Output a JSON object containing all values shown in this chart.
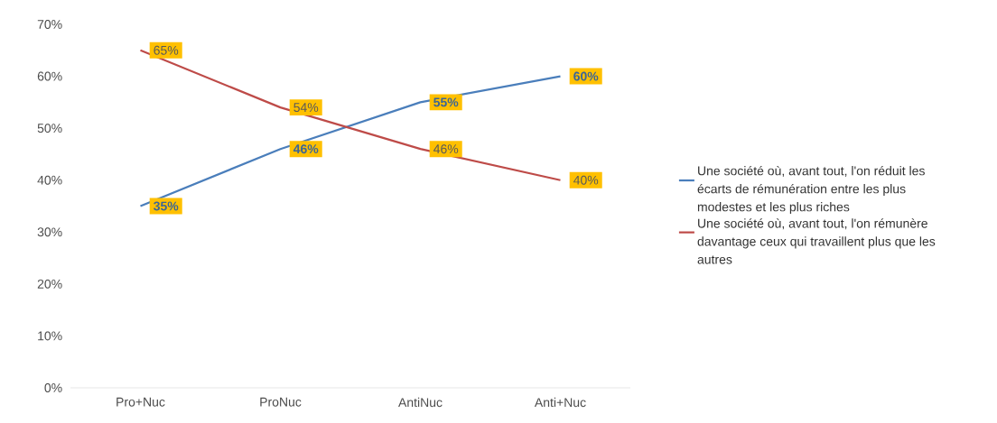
{
  "chart_data": {
    "type": "line",
    "categories": [
      "Pro+Nuc",
      "ProNuc",
      "AntiNuc",
      "Anti+Nuc"
    ],
    "series": [
      {
        "name": "Une société où, avant tout, l'on réduit les écarts de rémunération entre les plus modestes et les plus riches",
        "color": "#4a7ebb",
        "values": [
          35,
          46,
          55,
          60
        ],
        "value_labels": [
          "35%",
          "46%",
          "55%",
          "60%"
        ]
      },
      {
        "name": "Une société où, avant tout, l'on rémunère davantage ceux qui travaillent plus que les autres",
        "color": "#be4b48",
        "values": [
          65,
          54,
          46,
          40
        ],
        "value_labels": [
          "65%",
          "54%",
          "46%",
          "40%"
        ]
      }
    ],
    "ylim": [
      0,
      70
    ],
    "yticks": [
      {
        "value": 0,
        "label": "0%"
      },
      {
        "value": 10,
        "label": "10%"
      },
      {
        "value": 20,
        "label": "20%"
      },
      {
        "value": 30,
        "label": "30%"
      },
      {
        "value": 40,
        "label": "40%"
      },
      {
        "value": 50,
        "label": "50%"
      },
      {
        "value": 60,
        "label": "60%"
      },
      {
        "value": 70,
        "label": "70%"
      }
    ],
    "legend": "right",
    "marker": "none",
    "line_style": "solid"
  }
}
